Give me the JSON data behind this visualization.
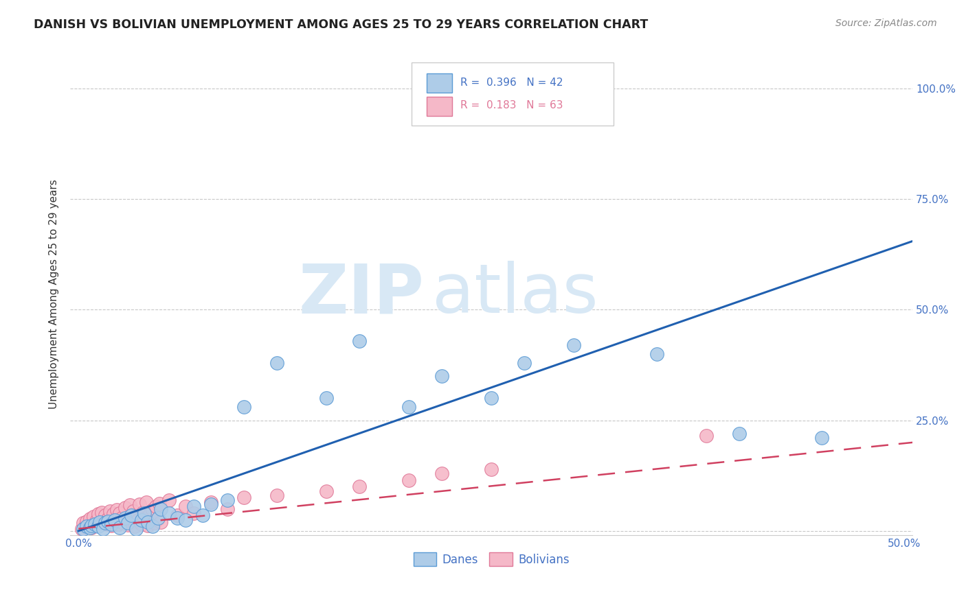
{
  "title": "DANISH VS BOLIVIAN UNEMPLOYMENT AMONG AGES 25 TO 29 YEARS CORRELATION CHART",
  "source": "Source: ZipAtlas.com",
  "ylabel": "Unemployment Among Ages 25 to 29 years",
  "xlim": [
    -0.005,
    0.505
  ],
  "ylim": [
    -0.01,
    1.08
  ],
  "xticks": [
    0.0,
    0.1,
    0.2,
    0.3,
    0.4,
    0.5
  ],
  "yticks": [
    0.0,
    0.25,
    0.5,
    0.75,
    1.0
  ],
  "xticklabels": [
    "0.0%",
    "",
    "",
    "",
    "",
    "50.0%"
  ],
  "right_yticklabels": [
    "",
    "25.0%",
    "50.0%",
    "75.0%",
    "100.0%"
  ],
  "dane_color": "#aecce8",
  "bolivian_color": "#f5b8c8",
  "dane_edge_color": "#5b9bd5",
  "bolivian_edge_color": "#e07898",
  "trend_dane_color": "#2060b0",
  "trend_bolivian_color": "#d04060",
  "dane_R": 0.396,
  "dane_N": 42,
  "bolivian_R": 0.183,
  "bolivian_N": 63,
  "watermark_zip": "ZIP",
  "watermark_atlas": "atlas",
  "watermark_color": "#d8e8f5",
  "danes_x": [
    0.003,
    0.005,
    0.007,
    0.008,
    0.01,
    0.012,
    0.013,
    0.015,
    0.016,
    0.018,
    0.02,
    0.022,
    0.025,
    0.028,
    0.03,
    0.032,
    0.035,
    0.038,
    0.04,
    0.042,
    0.045,
    0.048,
    0.05,
    0.055,
    0.06,
    0.065,
    0.07,
    0.075,
    0.08,
    0.09,
    0.1,
    0.12,
    0.15,
    0.17,
    0.2,
    0.22,
    0.25,
    0.27,
    0.3,
    0.35,
    0.4,
    0.45
  ],
  "danes_y": [
    0.005,
    0.01,
    0.008,
    0.012,
    0.015,
    0.01,
    0.02,
    0.005,
    0.018,
    0.022,
    0.015,
    0.025,
    0.008,
    0.03,
    0.018,
    0.035,
    0.005,
    0.025,
    0.04,
    0.02,
    0.01,
    0.03,
    0.05,
    0.04,
    0.03,
    0.025,
    0.055,
    0.035,
    0.06,
    0.07,
    0.28,
    0.38,
    0.3,
    0.43,
    0.28,
    0.35,
    0.3,
    0.38,
    0.42,
    0.4,
    0.22,
    0.21
  ],
  "bolivians_x": [
    0.002,
    0.003,
    0.004,
    0.005,
    0.006,
    0.007,
    0.008,
    0.009,
    0.01,
    0.011,
    0.012,
    0.013,
    0.014,
    0.015,
    0.016,
    0.017,
    0.018,
    0.019,
    0.02,
    0.021,
    0.022,
    0.023,
    0.024,
    0.025,
    0.026,
    0.027,
    0.028,
    0.029,
    0.03,
    0.031,
    0.032,
    0.033,
    0.034,
    0.035,
    0.036,
    0.037,
    0.038,
    0.039,
    0.04,
    0.041,
    0.042,
    0.043,
    0.044,
    0.045,
    0.046,
    0.047,
    0.048,
    0.049,
    0.05,
    0.055,
    0.06,
    0.065,
    0.07,
    0.08,
    0.09,
    0.1,
    0.12,
    0.15,
    0.17,
    0.2,
    0.22,
    0.25,
    0.38
  ],
  "bolivians_y": [
    0.005,
    0.018,
    0.01,
    0.022,
    0.015,
    0.028,
    0.008,
    0.032,
    0.012,
    0.025,
    0.038,
    0.018,
    0.042,
    0.02,
    0.035,
    0.015,
    0.028,
    0.045,
    0.012,
    0.038,
    0.022,
    0.048,
    0.016,
    0.04,
    0.03,
    0.018,
    0.052,
    0.024,
    0.014,
    0.058,
    0.02,
    0.045,
    0.01,
    0.035,
    0.025,
    0.06,
    0.016,
    0.042,
    0.028,
    0.065,
    0.012,
    0.038,
    0.022,
    0.048,
    0.018,
    0.055,
    0.028,
    0.062,
    0.02,
    0.07,
    0.035,
    0.055,
    0.04,
    0.065,
    0.05,
    0.075,
    0.08,
    0.09,
    0.1,
    0.115,
    0.13,
    0.14,
    0.215
  ],
  "dane_trend_x0": 0.0,
  "dane_trend_y0": 0.0,
  "dane_trend_x1": 0.505,
  "dane_trend_y1": 0.655,
  "bolivian_trend_x0": 0.0,
  "bolivian_trend_y0": 0.005,
  "bolivian_trend_x1": 0.505,
  "bolivian_trend_y1": 0.2
}
